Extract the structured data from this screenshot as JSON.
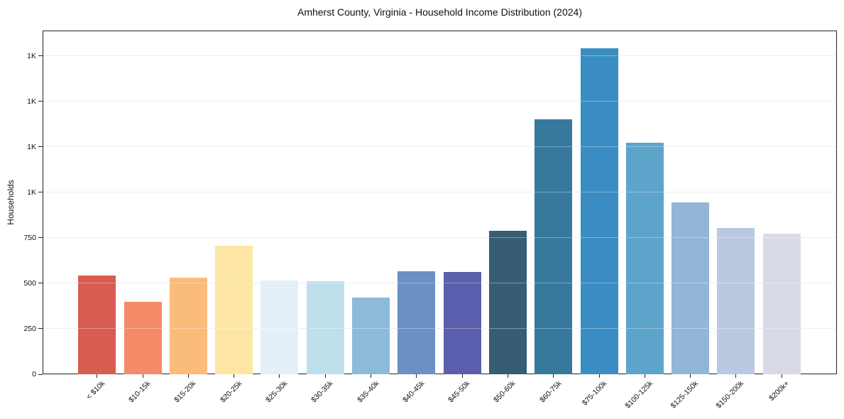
{
  "chart_data": {
    "type": "bar",
    "title": "Amherst County, Virginia - Household Income Distribution (2024)",
    "xlabel": "",
    "ylabel": "Households",
    "categories": [
      "< $10k",
      "$10-15k",
      "$15-20k",
      "$20-25k",
      "$25-30k",
      "$30-35k",
      "$35-40k",
      "$40-45k",
      "$45-50k",
      "$50-60k",
      "$60-75k",
      "$75-100k",
      "$100-125k",
      "$125-150k",
      "$150-200k",
      "$200k+"
    ],
    "values": [
      541,
      400,
      530,
      706,
      514,
      512,
      423,
      566,
      563,
      788,
      1400,
      1793,
      1272,
      944,
      803,
      775
    ],
    "bar_colors": [
      "#d85c51",
      "#f48a68",
      "#fbbb7a",
      "#fde5a4",
      "#e3f0f7",
      "#bee0ec",
      "#8dbad9",
      "#6a90c4",
      "#5b5fad",
      "#365d73",
      "#37799d",
      "#3a8dc2",
      "#5ca4ca",
      "#93b5d7",
      "#bac9e0",
      "#d9dae8"
    ],
    "ylim": [
      0,
      1890
    ],
    "y_ticks": [
      {
        "value": 0,
        "label": "0"
      },
      {
        "value": 250,
        "label": "250"
      },
      {
        "value": 500,
        "label": "500"
      },
      {
        "value": 750,
        "label": "750"
      },
      {
        "value": 1000,
        "label": "1K"
      },
      {
        "value": 1250,
        "label": "1K"
      },
      {
        "value": 1500,
        "label": "1K"
      },
      {
        "value": 1750,
        "label": "1K"
      }
    ],
    "grid": "horizontal",
    "legend": "none"
  },
  "style": {
    "background": "#ffffff",
    "axis_color": "#222222",
    "grid_color": "#e7e7e7",
    "text_color": "#1a1a1a"
  }
}
